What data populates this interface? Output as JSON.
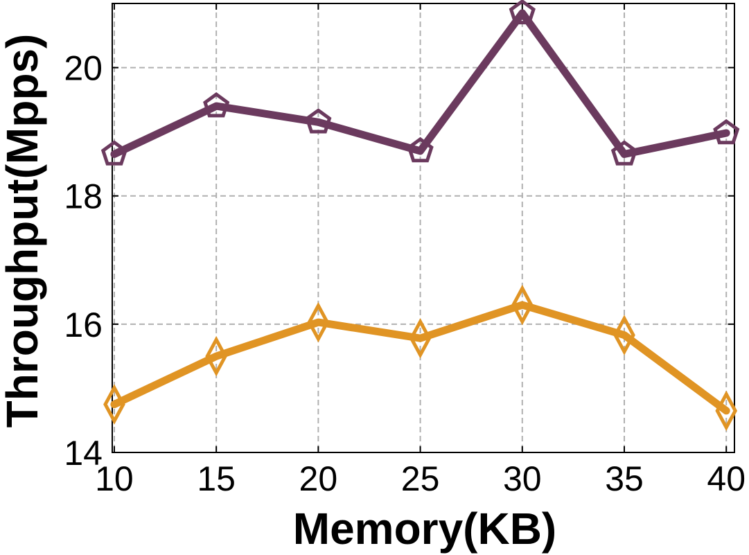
{
  "chart_data": {
    "type": "line",
    "xlabel": "Memory(KB)",
    "ylabel": "Throughput(Mpps)",
    "x": [
      10,
      15,
      20,
      25,
      30,
      35,
      40
    ],
    "xlim": [
      9.9,
      40.4
    ],
    "ylim": [
      14,
      21
    ],
    "xticks": [
      10,
      15,
      20,
      25,
      30,
      35,
      40
    ],
    "yticks": [
      14,
      16,
      18,
      20
    ],
    "grid": true,
    "series": [
      {
        "values": [
          18.65,
          19.4,
          19.15,
          18.7,
          20.85,
          18.65,
          18.98
        ],
        "color": "#6b3a5e",
        "marker": "pentagon-icon"
      },
      {
        "values": [
          14.75,
          15.5,
          16.03,
          15.78,
          16.3,
          15.83,
          14.65
        ],
        "color": "#e09424",
        "marker": "diamond-icon"
      }
    ]
  }
}
